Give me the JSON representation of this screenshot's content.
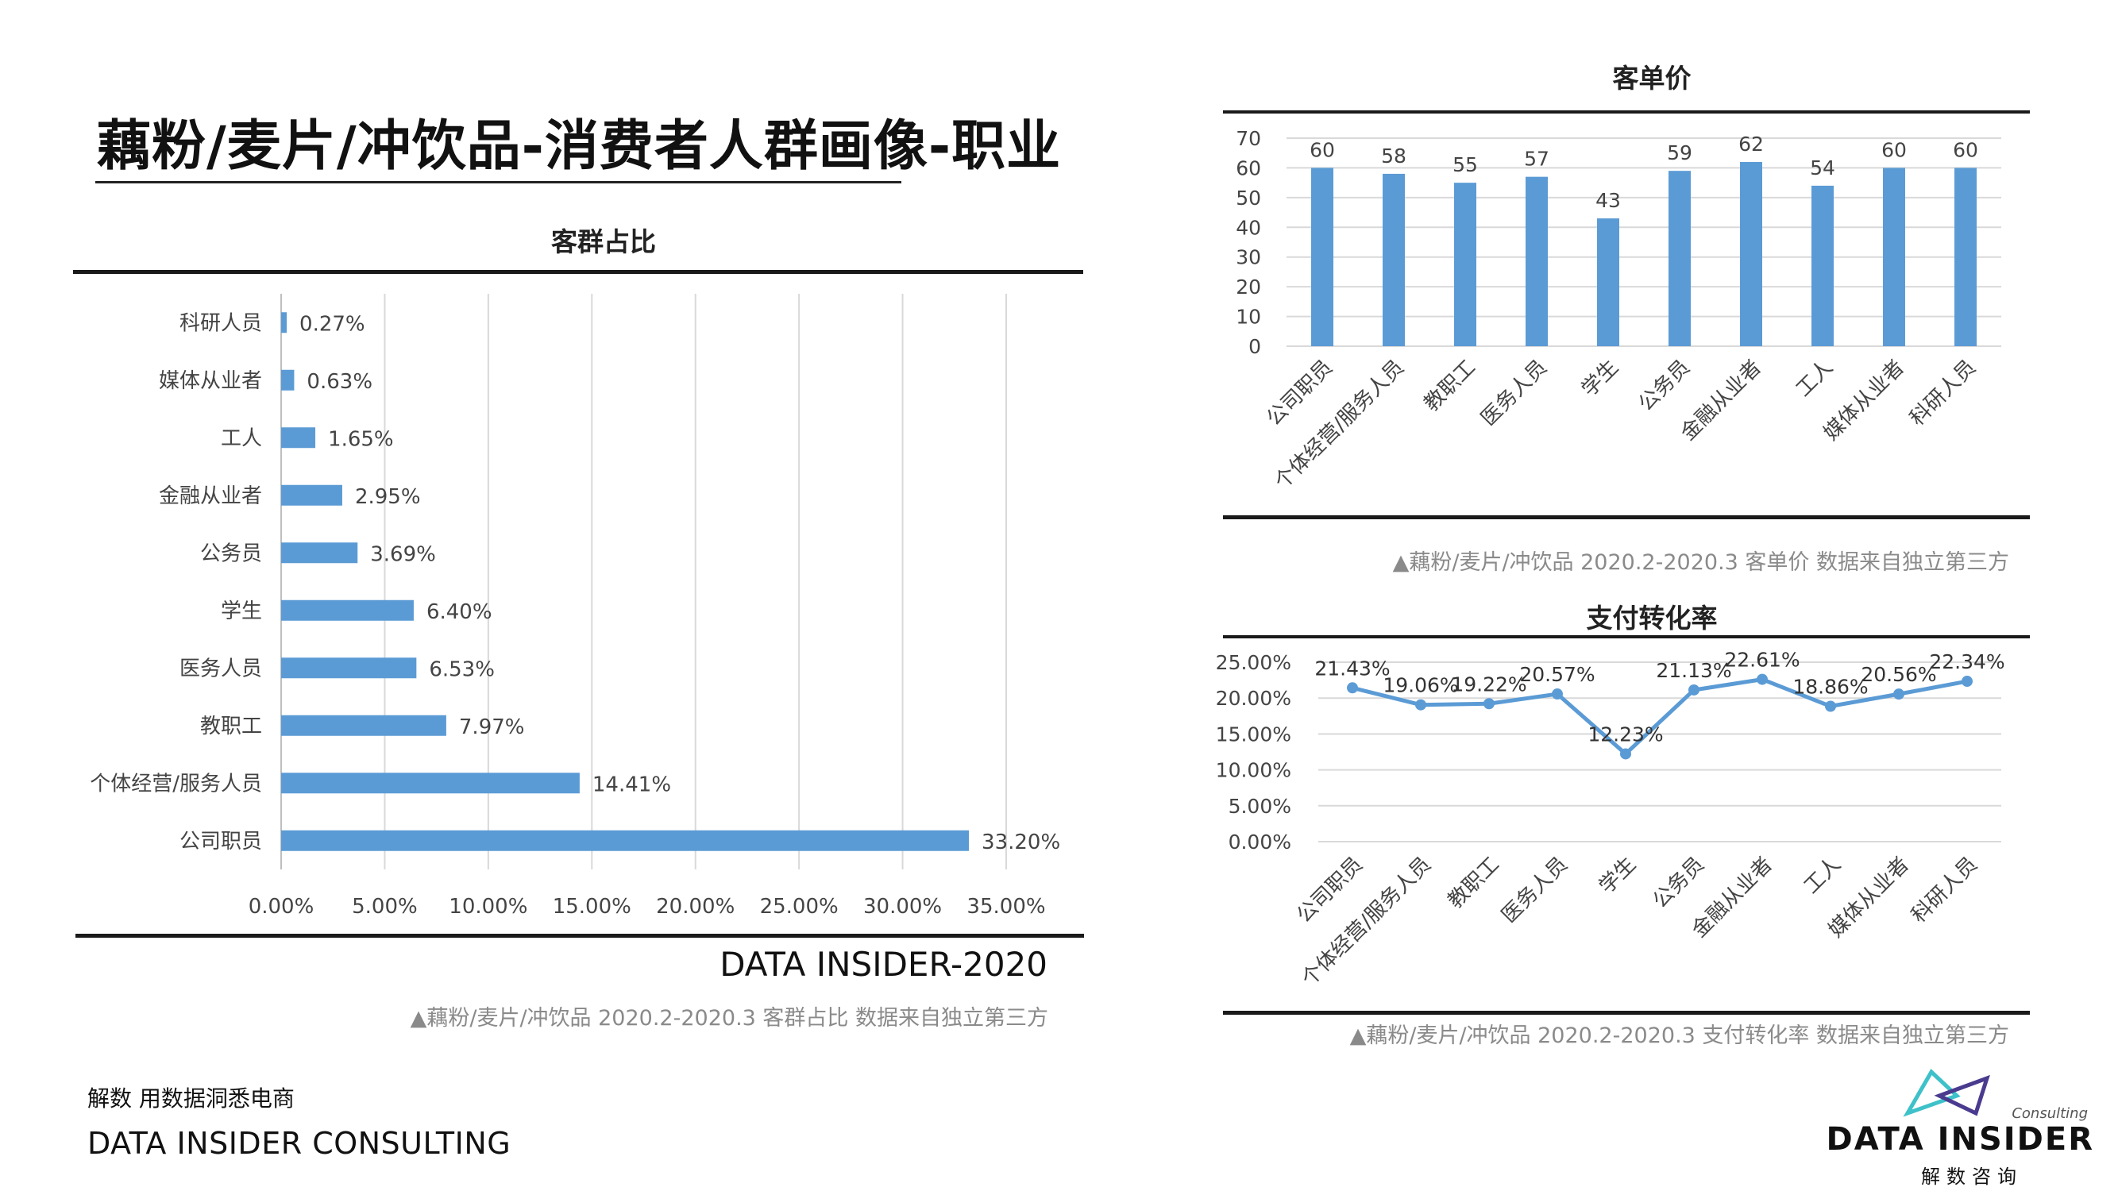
{
  "page": {
    "title": "藕粉/麦片/冲饮品-消费者人群画像-职业",
    "slogan": "解数 用数据洞悉电商",
    "company": "DATA INSIDER CONSULTING",
    "brand_year": "DATA INSIDER-2020",
    "logo": {
      "name": "DATA INSIDER",
      "sub": "解数咨询",
      "tag": "Consulting"
    }
  },
  "colors": {
    "bar": "#5b9bd5",
    "line": "#5b9bd5",
    "grid": "#d9d9d9",
    "axis": "#bfbfbf"
  },
  "captions": {
    "share": "▲藕粉/麦片/冲饮品 2020.2-2020.3 客群占比 数据来自独立第三方",
    "price": "▲藕粉/麦片/冲饮品 2020.2-2020.3 客单价 数据来自独立第三方",
    "conversion": "▲藕粉/麦片/冲饮品 2020.2-2020.3 支付转化率 数据来自独立第三方"
  },
  "chart_data": [
    {
      "id": "share",
      "type": "bar",
      "orientation": "horizontal",
      "title": "客群占比",
      "categories": [
        "科研人员",
        "媒体从业者",
        "工人",
        "金融从业者",
        "公务员",
        "学生",
        "医务人员",
        "教职工",
        "个体经营/服务人员",
        "公司职员"
      ],
      "values": [
        0.27,
        0.63,
        1.65,
        2.95,
        3.69,
        6.4,
        6.53,
        7.97,
        14.41,
        33.2
      ],
      "labels": [
        "0.27%",
        "0.63%",
        "1.65%",
        "2.95%",
        "3.69%",
        "6.40%",
        "6.53%",
        "7.97%",
        "14.41%",
        "33.20%"
      ],
      "xlim": [
        0,
        35
      ],
      "xticks": [
        "0.00%",
        "5.00%",
        "10.00%",
        "15.00%",
        "20.00%",
        "25.00%",
        "30.00%",
        "35.00%"
      ],
      "grid": true
    },
    {
      "id": "price",
      "type": "bar",
      "orientation": "vertical",
      "title": "客单价",
      "categories": [
        "公司职员",
        "个体经营/服务人员",
        "教职工",
        "医务人员",
        "学生",
        "公务员",
        "金融从业者",
        "工人",
        "媒体从业者",
        "科研人员"
      ],
      "values": [
        60,
        58,
        55,
        57,
        43,
        59,
        62,
        54,
        60,
        60
      ],
      "ylim": [
        0,
        70
      ],
      "yticks": [
        "0",
        "10",
        "20",
        "30",
        "40",
        "50",
        "60",
        "70"
      ],
      "grid": true
    },
    {
      "id": "conversion",
      "type": "line",
      "title": "支付转化率",
      "categories": [
        "公司职员",
        "个体经营/服务人员",
        "教职工",
        "医务人员",
        "学生",
        "公务员",
        "金融从业者",
        "工人",
        "媒体从业者",
        "科研人员"
      ],
      "values": [
        21.43,
        19.06,
        19.22,
        20.57,
        12.23,
        21.13,
        22.61,
        18.86,
        20.56,
        22.34
      ],
      "labels": [
        "21.43%",
        "19.06%",
        "19.22%",
        "20.57%",
        "12.23%",
        "21.13%",
        "22.61%",
        "18.86%",
        "20.56%",
        "22.34%"
      ],
      "ylim": [
        0,
        25
      ],
      "yticks": [
        "0.00%",
        "5.00%",
        "10.00%",
        "15.00%",
        "20.00%",
        "25.00%"
      ],
      "grid": true
    }
  ]
}
